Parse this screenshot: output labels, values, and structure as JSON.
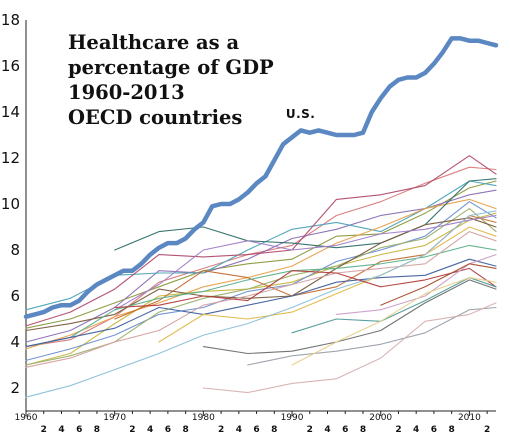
{
  "chart_data": {
    "type": "line",
    "title_lines": [
      "Healthcare as a",
      "percentage of GDP",
      "1960-2013",
      "OECD countries"
    ],
    "xlabel": "",
    "ylabel": "",
    "xlim": [
      1960,
      2013
    ],
    "ylim": [
      1,
      18
    ],
    "y_ticks": [
      2,
      4,
      6,
      8,
      10,
      12,
      14,
      16,
      18
    ],
    "x_major_ticks": [
      {
        "x": 1960,
        "label": "1960"
      },
      {
        "x": 1970,
        "label": "1970"
      },
      {
        "x": 1980,
        "label": "1980"
      },
      {
        "x": 1990,
        "label": "1990"
      },
      {
        "x": 2000,
        "label": "2000"
      },
      {
        "x": 2010,
        "label": "2010"
      }
    ],
    "x_minor_ticks": [
      {
        "x": 1962,
        "label": "2"
      },
      {
        "x": 1964,
        "label": "4"
      },
      {
        "x": 1966,
        "label": "6"
      },
      {
        "x": 1968,
        "label": "8"
      },
      {
        "x": 1972,
        "label": "2"
      },
      {
        "x": 1974,
        "label": "4"
      },
      {
        "x": 1976,
        "label": "6"
      },
      {
        "x": 1978,
        "label": "8"
      },
      {
        "x": 1982,
        "label": "2"
      },
      {
        "x": 1984,
        "label": "4"
      },
      {
        "x": 1986,
        "label": "6"
      },
      {
        "x": 1988,
        "label": "8"
      },
      {
        "x": 1992,
        "label": "2"
      },
      {
        "x": 1994,
        "label": "4"
      },
      {
        "x": 1996,
        "label": "6"
      },
      {
        "x": 1998,
        "label": "8"
      },
      {
        "x": 2002,
        "label": "2"
      },
      {
        "x": 2004,
        "label": "4"
      },
      {
        "x": 2006,
        "label": "6"
      },
      {
        "x": 2008,
        "label": "8"
      },
      {
        "x": 2012,
        "label": "2"
      }
    ],
    "grid": false,
    "legend": "none",
    "highlight": {
      "name": "U.S.",
      "color": "#5b88c2",
      "x": [
        1960,
        1961,
        1962,
        1963,
        1964,
        1965,
        1966,
        1967,
        1968,
        1969,
        1970,
        1971,
        1972,
        1973,
        1974,
        1975,
        1976,
        1977,
        1978,
        1979,
        1980,
        1981,
        1982,
        1983,
        1984,
        1985,
        1986,
        1987,
        1988,
        1989,
        1990,
        1991,
        1992,
        1993,
        1994,
        1995,
        1996,
        1997,
        1998,
        1999,
        2000,
        2001,
        2002,
        2003,
        2004,
        2005,
        2006,
        2007,
        2008,
        2009,
        2010,
        2011,
        2012,
        2013
      ],
      "y": [
        5.1,
        5.2,
        5.3,
        5.5,
        5.6,
        5.6,
        5.8,
        6.2,
        6.5,
        6.7,
        6.9,
        7.1,
        7.1,
        7.4,
        7.8,
        8.1,
        8.3,
        8.3,
        8.5,
        8.9,
        9.2,
        9.9,
        10.0,
        10.0,
        10.2,
        10.5,
        10.9,
        11.2,
        11.9,
        12.6,
        12.9,
        13.2,
        13.1,
        13.2,
        13.1,
        13.0,
        13.0,
        13.0,
        13.1,
        14.0,
        14.6,
        15.1,
        15.4,
        15.5,
        15.5,
        15.7,
        16.1,
        16.6,
        17.2,
        17.2,
        17.1,
        17.1,
        17.0,
        16.9
      ]
    },
    "series": [
      {
        "color": "#d97a7a",
        "x": [
          1960,
          1965,
          1970,
          1975,
          1980,
          1985,
          1990,
          1995,
          2000,
          2005,
          2010,
          2013
        ],
        "y": [
          3.8,
          4.1,
          5.1,
          6.6,
          7.2,
          7.8,
          8.2,
          9.5,
          10.1,
          10.9,
          11.6,
          11.5
        ]
      },
      {
        "color": "#8a9a3c",
        "x": [
          1960,
          1965,
          1970,
          1975,
          1980,
          1985,
          1990,
          1995,
          2000,
          2005,
          2010,
          2013
        ],
        "y": [
          4.6,
          5.0,
          5.7,
          6.4,
          7.1,
          7.4,
          7.6,
          8.6,
          8.7,
          9.6,
          10.7,
          11.0
        ]
      },
      {
        "color": "#8a6fb4",
        "x": [
          1960,
          1965,
          1970,
          1975,
          1980,
          1985,
          1990,
          1995,
          2000,
          2005,
          2010,
          2013
        ],
        "y": [
          4.0,
          4.5,
          5.5,
          7.1,
          7.0,
          7.6,
          8.5,
          8.9,
          9.5,
          9.8,
          10.4,
          10.6
        ]
      },
      {
        "color": "#4aa3b8",
        "x": [
          1960,
          1965,
          1970,
          1975,
          1980,
          1985,
          1990,
          1995,
          2000,
          2005,
          2010,
          2013
        ],
        "y": [
          5.4,
          5.9,
          6.9,
          7.0,
          7.0,
          8.0,
          8.9,
          9.2,
          8.8,
          9.8,
          11.0,
          10.8
        ]
      },
      {
        "color": "#e8a04c",
        "x": [
          1960,
          1965,
          1970,
          1975,
          1980,
          1985,
          1990,
          1995,
          2000,
          2005,
          2010,
          2013
        ],
        "y": [
          3.7,
          4.3,
          5.1,
          5.7,
          6.4,
          6.8,
          7.3,
          8.3,
          9.0,
          9.8,
          10.2,
          9.8
        ]
      },
      {
        "color": "#b04a6a",
        "x": [
          1960,
          1965,
          1970,
          1975,
          1980,
          1985,
          1990,
          1995,
          2000,
          2005,
          2010,
          2013
        ],
        "y": [
          4.7,
          5.3,
          6.3,
          7.8,
          7.7,
          7.8,
          8.0,
          10.2,
          10.4,
          10.8,
          12.1,
          11.3
        ]
      },
      {
        "color": "#2f6f6a",
        "x": [
          1970,
          1975,
          1980,
          1985,
          1990,
          1995,
          2000,
          2005,
          2010,
          2013
        ],
        "y": [
          8.0,
          8.8,
          9.0,
          8.4,
          8.3,
          8.1,
          8.3,
          9.1,
          11.0,
          11.1
        ]
      },
      {
        "color": "#c9b53c",
        "x": [
          1960,
          1965,
          1970,
          1975,
          1980,
          1985,
          1990,
          1995,
          2000,
          2005,
          2010,
          2013
        ],
        "y": [
          3.0,
          3.5,
          4.8,
          6.0,
          6.2,
          6.3,
          6.6,
          7.3,
          7.8,
          8.2,
          9.3,
          9.6
        ]
      },
      {
        "color": "#6c8fd0",
        "x": [
          1960,
          1965,
          1970,
          1975,
          1980,
          1985,
          1990,
          1995,
          2000,
          2005,
          2010,
          2013
        ],
        "y": [
          3.2,
          3.7,
          4.3,
          5.2,
          5.5,
          6.2,
          6.5,
          7.5,
          8.0,
          8.6,
          10.1,
          9.4
        ]
      },
      {
        "color": "#9ab06a",
        "x": [
          1960,
          1965,
          1970,
          1975,
          1980,
          1985,
          1990,
          1995,
          2000,
          2005,
          2010,
          2013
        ],
        "y": [
          3.0,
          3.4,
          4.0,
          5.3,
          5.9,
          6.3,
          6.9,
          7.3,
          8.1,
          8.5,
          9.8,
          8.8
        ]
      },
      {
        "color": "#c46b2f",
        "x": [
          1970,
          1975,
          1980,
          1985,
          1990,
          1995,
          2000,
          2005,
          2010,
          2013
        ],
        "y": [
          5.0,
          5.8,
          7.1,
          6.8,
          6.0,
          6.4,
          7.5,
          7.8,
          9.5,
          9.2
        ]
      },
      {
        "color": "#7a5a3a",
        "x": [
          1960,
          1965,
          1970,
          1975,
          1980,
          1985,
          1990,
          1995,
          2000,
          2005,
          2010,
          2013
        ],
        "y": [
          4.5,
          4.8,
          5.2,
          6.3,
          6.0,
          5.9,
          6.0,
          7.2,
          8.3,
          9.1,
          9.4,
          9.0
        ]
      },
      {
        "color": "#a07cc8",
        "x": [
          1970,
          1975,
          1980,
          1985,
          1990,
          1995,
          2000,
          2005,
          2010,
          2013
        ],
        "y": [
          5.4,
          6.5,
          8.0,
          8.4,
          8.0,
          8.2,
          8.7,
          8.9,
          9.3,
          9.5
        ]
      },
      {
        "color": "#5bb08a",
        "x": [
          1960,
          1965,
          1970,
          1975,
          1980,
          1985,
          1990,
          1995,
          2000,
          2005,
          2010,
          2013
        ],
        "y": [
          3.8,
          4.2,
          5.4,
          5.9,
          6.2,
          6.7,
          7.1,
          7.2,
          7.4,
          7.7,
          8.2,
          8.0
        ]
      },
      {
        "color": "#d4a0a0",
        "x": [
          1960,
          1965,
          1970,
          1975,
          1980,
          1985,
          1990,
          1995,
          2000,
          2005,
          2010,
          2013
        ],
        "y": [
          2.9,
          3.3,
          4.0,
          4.5,
          5.6,
          6.0,
          6.5,
          7.0,
          7.2,
          7.4,
          8.8,
          8.4
        ]
      },
      {
        "color": "#3f5f9f",
        "x": [
          1960,
          1965,
          1970,
          1975,
          1980,
          1985,
          1990,
          1995,
          2000,
          2005,
          2010,
          2013
        ],
        "y": [
          3.8,
          4.2,
          4.6,
          5.5,
          5.2,
          5.6,
          6.0,
          6.6,
          6.8,
          6.9,
          7.6,
          7.3
        ]
      },
      {
        "color": "#e0b84a",
        "x": [
          1975,
          1980,
          1985,
          1990,
          1995,
          2000,
          2005,
          2010,
          2013
        ],
        "y": [
          4.0,
          5.2,
          5.0,
          5.3,
          6.1,
          6.9,
          7.8,
          9.0,
          8.6
        ]
      },
      {
        "color": "#8bc0d8",
        "x": [
          1960,
          1965,
          1970,
          1975,
          1980,
          1985,
          1990,
          1995,
          2000,
          2005,
          2010,
          2013
        ],
        "y": [
          1.6,
          2.1,
          2.8,
          3.5,
          4.3,
          4.8,
          5.5,
          6.3,
          6.9,
          7.8,
          9.5,
          9.7
        ]
      },
      {
        "color": "#b33a3a",
        "x": [
          1970,
          1975,
          1980,
          1985,
          1990,
          1995,
          2000,
          2005,
          2010,
          2013
        ],
        "y": [
          5.5,
          5.6,
          6.0,
          5.8,
          7.1,
          7.0,
          6.4,
          6.7,
          7.2,
          6.4
        ]
      },
      {
        "color": "#6d6d6d",
        "x": [
          1980,
          1985,
          1990,
          1995,
          2000,
          2005,
          2010,
          2013
        ],
        "y": [
          3.8,
          3.5,
          3.6,
          4.0,
          4.5,
          5.7,
          6.7,
          6.3
        ]
      },
      {
        "color": "#4f9a9a",
        "x": [
          1990,
          1995,
          2000,
          2005,
          2010,
          2013
        ],
        "y": [
          4.4,
          5.0,
          4.9,
          5.8,
          6.8,
          6.4
        ]
      },
      {
        "color": "#c9a0c9",
        "x": [
          1995,
          2000,
          2005,
          2010,
          2013
        ],
        "y": [
          5.2,
          5.4,
          6.0,
          7.4,
          7.8
        ]
      },
      {
        "color": "#9aa0a8",
        "x": [
          1985,
          1990,
          1995,
          2000,
          2005,
          2010,
          2013
        ],
        "y": [
          3.0,
          3.4,
          3.6,
          3.9,
          4.4,
          5.4,
          5.5
        ]
      },
      {
        "color": "#d8b0b0",
        "x": [
          1980,
          1985,
          1990,
          1995,
          2000,
          2005,
          2010,
          2013
        ],
        "y": [
          2.0,
          1.8,
          2.2,
          2.4,
          3.3,
          4.9,
          5.2,
          5.7
        ]
      },
      {
        "color": "#e6d08a",
        "x": [
          1990,
          1995,
          2000,
          2005,
          2010,
          2013
        ],
        "y": [
          3.0,
          4.0,
          4.9,
          6.1,
          6.8,
          6.6
        ]
      },
      {
        "color": "#a84a2a",
        "x": [
          2000,
          2005,
          2010,
          2013
        ],
        "y": [
          5.6,
          6.4,
          7.4,
          7.2
        ]
      }
    ]
  }
}
